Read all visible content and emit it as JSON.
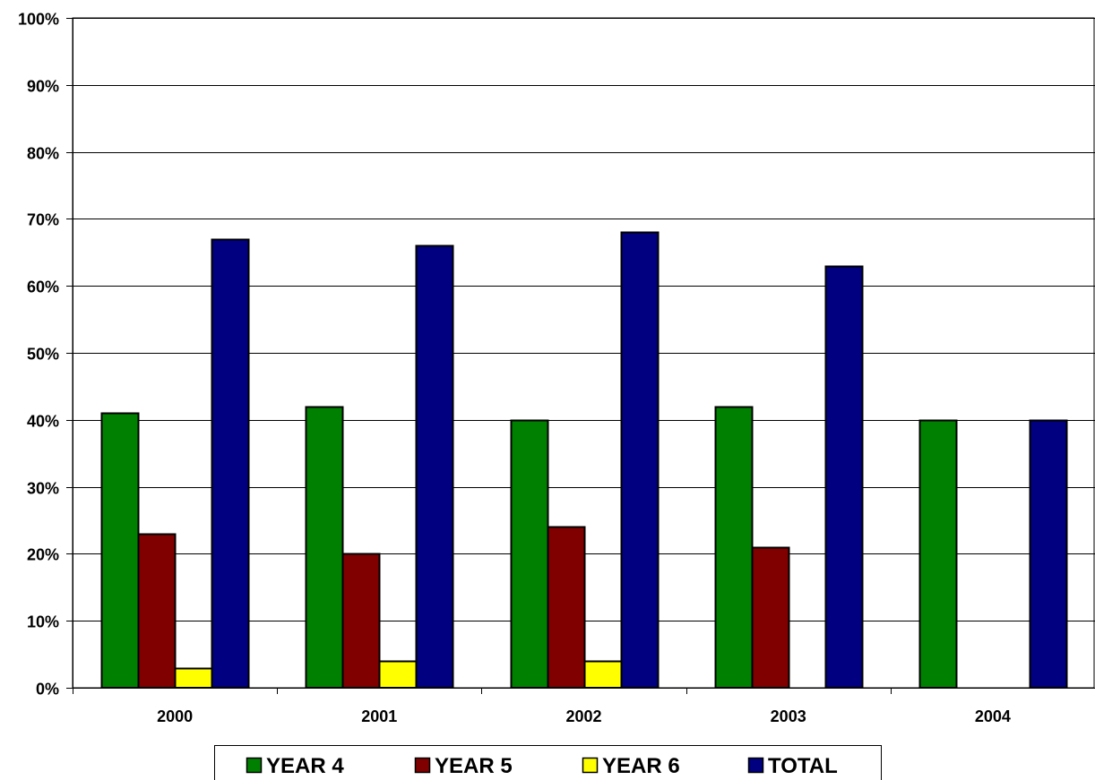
{
  "chart_data": {
    "type": "bar",
    "title": "",
    "xlabel": "",
    "ylabel": "",
    "categories": [
      "2000",
      "2001",
      "2002",
      "2003",
      "2004"
    ],
    "ylim": [
      0,
      100
    ],
    "y_ticks": [
      0,
      10,
      20,
      30,
      40,
      50,
      60,
      70,
      80,
      90,
      100
    ],
    "y_tick_labels": [
      "0%",
      "10%",
      "20%",
      "30%",
      "40%",
      "50%",
      "60%",
      "70%",
      "80%",
      "90%",
      "100%"
    ],
    "grid": true,
    "legend_position": "bottom",
    "series": [
      {
        "name": "YEAR 4",
        "color": "#008000",
        "values": [
          41,
          42,
          40,
          42,
          40
        ]
      },
      {
        "name": "YEAR 5",
        "color": "#800000",
        "values": [
          23,
          20,
          24,
          21,
          0
        ]
      },
      {
        "name": "YEAR 6",
        "color": "#ffff00",
        "values": [
          3,
          4,
          4,
          0,
          0
        ]
      },
      {
        "name": "TOTAL",
        "color": "#000080",
        "values": [
          67,
          66,
          68,
          63,
          40
        ]
      }
    ]
  }
}
